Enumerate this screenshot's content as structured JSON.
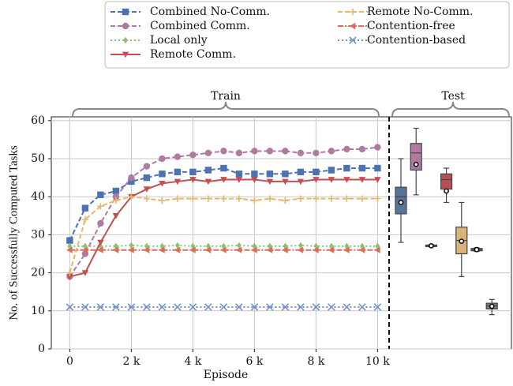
{
  "chart_data": [
    {
      "type": "line",
      "x_label": "Episode",
      "y_label": "No. of Successfully Computed Tasks",
      "annotation": "Train",
      "x": [
        0,
        500,
        1000,
        1500,
        2000,
        2500,
        3000,
        3500,
        4000,
        4500,
        5000,
        5500,
        6000,
        6500,
        7000,
        7500,
        8000,
        8500,
        9000,
        9500,
        10000
      ],
      "xlim": [
        -600,
        10400
      ],
      "xticks": [
        0,
        {
          "value": 2000,
          "label": "2 k"
        },
        {
          "value": 4000,
          "label": "4 k"
        },
        {
          "value": 6000,
          "label": "6 k"
        },
        {
          "value": 8000,
          "label": "8 k"
        },
        {
          "value": 10000,
          "label": "10 k"
        }
      ],
      "ylim": [
        0,
        61
      ],
      "yticks": [
        0,
        10,
        20,
        30,
        40,
        50,
        60
      ],
      "grid": true,
      "series": [
        {
          "name": "Combined No-Comm.",
          "color": "#4c72b0",
          "marker": "square",
          "dash": "dashed",
          "values": [
            28.5,
            37,
            40.5,
            41.5,
            44,
            45,
            46,
            46.5,
            46.5,
            47,
            47.5,
            46,
            46,
            46,
            46,
            46.5,
            46.5,
            47,
            47.5,
            47.5,
            47.5
          ]
        },
        {
          "name": "Combined Comm.",
          "color": "#b07aa1",
          "marker": "circle",
          "dash": "dashed",
          "values": [
            19,
            25,
            33,
            40,
            45,
            48,
            50,
            50.5,
            51,
            51.5,
            52,
            51.5,
            52,
            52,
            52,
            51.5,
            51.5,
            52,
            52.5,
            52.5,
            53
          ]
        },
        {
          "name": "Local only",
          "color": "#8cbf73",
          "marker": "diamond",
          "dash": "dotted",
          "values": [
            27,
            27,
            27,
            27,
            27.2,
            27,
            27,
            27.2,
            27,
            27,
            27,
            27.2,
            27,
            27,
            27,
            27.2,
            27,
            27,
            27,
            27,
            27
          ]
        },
        {
          "name": "Remote Comm.",
          "color": "#c44e52",
          "marker": "triangle-down",
          "dash": "solid",
          "values": [
            19,
            20,
            28,
            35,
            40,
            42,
            43.5,
            44,
            44.5,
            44,
            44.5,
            44.5,
            44.5,
            44,
            44,
            44,
            44.5,
            44.5,
            44.5,
            44.5,
            44.5
          ]
        },
        {
          "name": "Remote No-Comm.",
          "color": "#e3b96e",
          "marker": "plus",
          "dash": "dashed",
          "values": [
            20,
            34,
            37.5,
            39,
            40,
            39.5,
            39,
            39.5,
            39.5,
            39.5,
            39.5,
            39.5,
            39,
            39.5,
            39,
            39.5,
            39.5,
            39.5,
            39.5,
            39.5,
            39.5
          ]
        },
        {
          "name": "Contention-free",
          "color": "#dd6f58",
          "marker": "triangle-left",
          "dash": "dashdot",
          "values": [
            26,
            26,
            26,
            26,
            26,
            26,
            26,
            26,
            26,
            26,
            26,
            26,
            26,
            26,
            26,
            26,
            26,
            26,
            26,
            26,
            26
          ]
        },
        {
          "name": "Contention-based",
          "color": "#6f8fc9",
          "marker": "x",
          "dash": "dotted",
          "values": [
            11,
            11,
            11,
            11,
            11,
            11,
            11,
            11,
            11,
            11,
            11,
            11,
            11,
            11,
            11,
            11,
            11,
            11,
            11,
            11,
            11
          ]
        }
      ]
    },
    {
      "type": "box",
      "annotation": "Test",
      "ylim": [
        0,
        61
      ],
      "boxes": [
        {
          "color": "#58739c",
          "whislo": 28,
          "q1": 35.5,
          "med": 40,
          "q3": 42.5,
          "whishi": 50,
          "mean": 38.5
        },
        {
          "color": "#b07aa1",
          "whislo": 40.5,
          "q1": 47,
          "med": 51.5,
          "q3": 54,
          "whishi": 58,
          "mean": 48.5
        },
        {
          "color": "#8cbf73",
          "whislo": 26.8,
          "q1": 26.9,
          "med": 27.1,
          "q3": 27.3,
          "whishi": 27.4,
          "mean": 27.1
        },
        {
          "color": "#b84f55",
          "whislo": 38.5,
          "q1": 42,
          "med": 44.5,
          "q3": 46,
          "whishi": 47.5,
          "mean": 41.5
        },
        {
          "color": "#d6b47c",
          "whislo": 19,
          "q1": 25,
          "med": 28.5,
          "q3": 32,
          "whishi": 38.5,
          "mean": 28.3
        },
        {
          "color": "#d16a57",
          "whislo": 25.6,
          "q1": 25.8,
          "med": 26.1,
          "q3": 26.4,
          "whishi": 26.6,
          "mean": 26.1
        },
        {
          "color": "#7a7f8a",
          "whislo": 9,
          "q1": 10.5,
          "med": 11.3,
          "q3": 12,
          "whishi": 13,
          "mean": 11.2
        }
      ]
    }
  ]
}
